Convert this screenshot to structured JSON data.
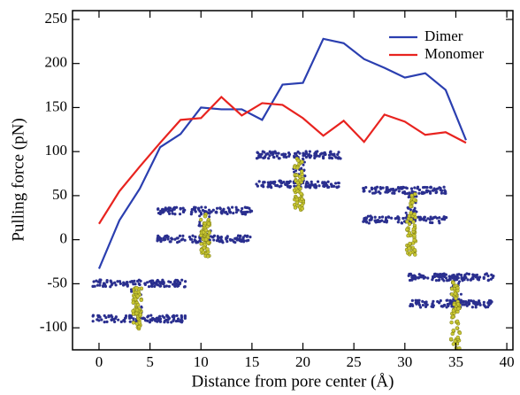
{
  "chart_data": {
    "type": "line",
    "x_label": "Distance from pore center (Å)",
    "y_label": "Pulling force (pN)",
    "x": [
      0,
      2,
      4,
      6,
      8,
      10,
      12,
      14,
      16,
      18,
      20,
      22,
      24,
      26,
      28,
      30,
      32,
      34,
      36
    ],
    "series": [
      {
        "name": "Dimer",
        "color": "#2b3fb0",
        "values": [
          -33,
          22,
          58,
          105,
          120,
          150,
          148,
          148,
          136,
          176,
          178,
          228,
          223,
          205,
          195,
          184,
          189,
          170,
          113
        ]
      },
      {
        "name": "Monomer",
        "color": "#e8231f",
        "values": [
          18,
          55,
          83,
          110,
          136,
          138,
          162,
          141,
          155,
          153,
          138,
          118,
          135,
          111,
          142,
          134,
          119,
          122,
          110
        ]
      }
    ],
    "xlim": [
      -2.6,
      40.6
    ],
    "ylim": [
      -125,
      260
    ],
    "xticks": [
      0,
      5,
      10,
      15,
      20,
      25,
      30,
      35,
      40
    ],
    "yticks": [
      -100,
      -50,
      0,
      50,
      100,
      150,
      200,
      250
    ],
    "legend": "upper right"
  }
}
